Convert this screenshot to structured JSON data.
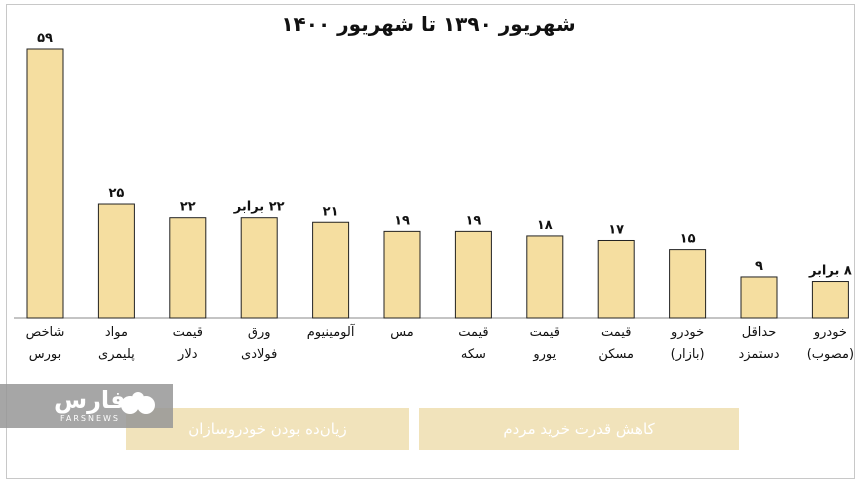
{
  "chart_data": {
    "type": "bar",
    "title": "شهریور ۱۳۹۰ تا شهریور ۱۴۰۰",
    "ylim": [
      0,
      59
    ],
    "grid": false,
    "categories": [
      [
        "شاخص",
        "بورس"
      ],
      [
        "مواد",
        "پلیمری"
      ],
      [
        "قیمت",
        "دلار"
      ],
      [
        "ورق",
        "فولادی"
      ],
      [
        "آلومینیوم"
      ],
      [
        "مس"
      ],
      [
        "قیمت",
        "سکه"
      ],
      [
        "قیمت",
        "یورو"
      ],
      [
        "قیمت",
        "مسکن"
      ],
      [
        "خودرو",
        "(بازار)"
      ],
      [
        "حداقل",
        "دستمزد"
      ],
      [
        "خودرو",
        "(مصوب)"
      ]
    ],
    "values": [
      59,
      25,
      22,
      22,
      21,
      19,
      19,
      18,
      17,
      15,
      9,
      8
    ],
    "value_labels": [
      "۵۹",
      "۲۵",
      "۲۲",
      "۲۲ برابر",
      "۲۱",
      "۱۹",
      "۱۹",
      "۱۸",
      "۱۷",
      "۱۵",
      "۹",
      "۸ برابر"
    ],
    "groups": [
      {
        "label": "زیان‌ده بودن خودروسازان"
      },
      {
        "label": "کاهش قدرت خرید مردم"
      }
    ]
  },
  "watermark": {
    "text": "فارس",
    "subtext": "FARSNEWS",
    "icon": "fars-logo-icon"
  },
  "colors": {
    "bar_fill": "#f5dea0",
    "group_fill": "#f1e3bb"
  }
}
